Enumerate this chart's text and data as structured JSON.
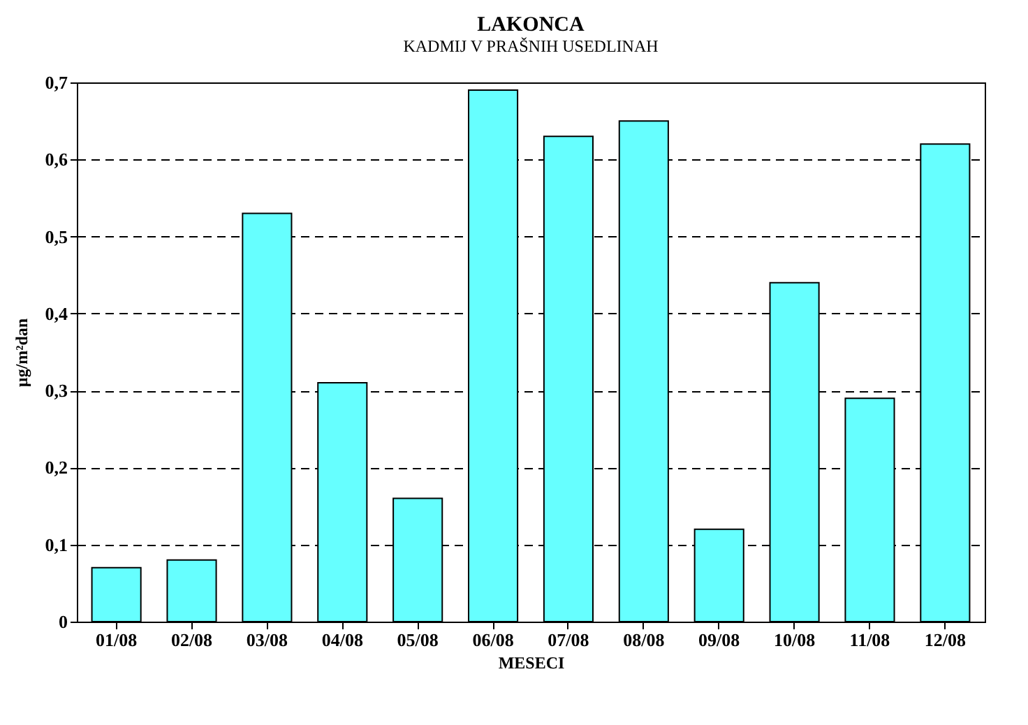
{
  "chart_data": {
    "type": "bar",
    "title": "LAKONCA",
    "subtitle": "KADMIJ V PRAŠNIH USEDLINAH",
    "xlabel": "MESECI",
    "ylabel": "µg/m²dan",
    "categories": [
      "01/08",
      "02/08",
      "03/08",
      "04/08",
      "05/08",
      "06/08",
      "07/08",
      "08/08",
      "09/08",
      "10/08",
      "11/08",
      "12/08"
    ],
    "values": [
      0.07,
      0.08,
      0.53,
      0.31,
      0.16,
      0.69,
      0.63,
      0.65,
      0.12,
      0.44,
      0.29,
      0.62
    ],
    "color": "#66ffff",
    "ylim": [
      0,
      0.7
    ],
    "yticks": [
      0,
      {
        "value": 0.1,
        "label": "0,1"
      },
      {
        "value": 0.2,
        "label": "0,2"
      },
      {
        "value": 0.3,
        "label": "0,3"
      },
      {
        "value": 0.4,
        "label": "0,4"
      },
      {
        "value": 0.5,
        "label": "0,5"
      },
      {
        "value": 0.6,
        "label": "0,6"
      },
      {
        "value": 0.7,
        "label": "0,7"
      }
    ],
    "grid": "y"
  }
}
